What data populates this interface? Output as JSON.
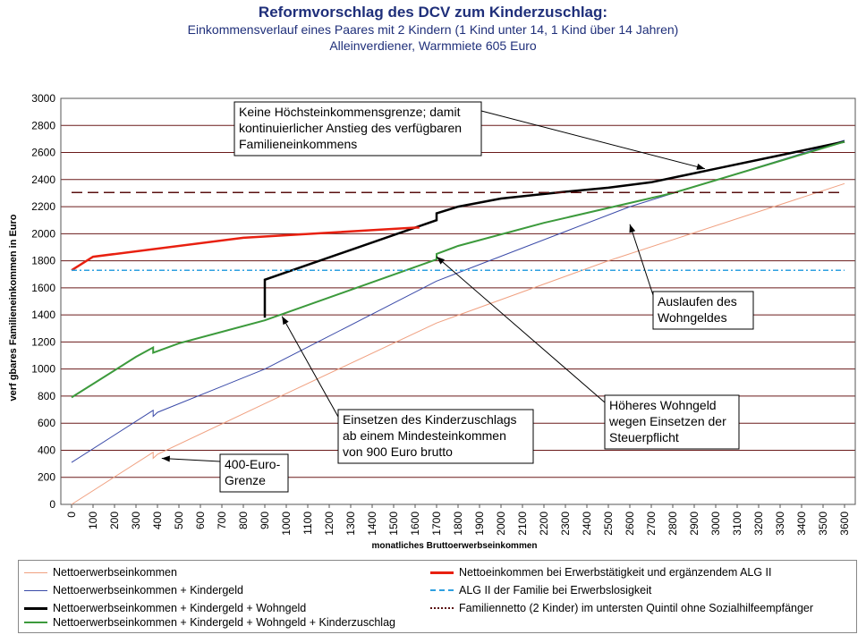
{
  "title": "Reformvorschlag des DCV zum Kinderzuschlag:",
  "subtitle1": "Einkommensverlauf eines Paares mit 2 Kindern (1 Kind unter 14, 1 Kind über 14 Jahren)",
  "subtitle2": "Alleinverdiener, Warmmiete 605 Euro",
  "chart_data": {
    "type": "line",
    "xlabel": "monatliches Bruttoerwerbseinkommen",
    "ylabel": "verf gbares Familieneinkommen in Euro",
    "xlim": [
      0,
      3600
    ],
    "ylim": [
      0,
      3000
    ],
    "x_ticks": [
      0,
      100,
      200,
      300,
      400,
      500,
      600,
      700,
      800,
      900,
      1000,
      1100,
      1200,
      1300,
      1400,
      1500,
      1600,
      1700,
      1800,
      1900,
      2000,
      2100,
      2200,
      2300,
      2400,
      2500,
      2600,
      2700,
      2800,
      2900,
      3000,
      3100,
      3200,
      3300,
      3400,
      3500,
      3600
    ],
    "y_ticks": [
      0,
      200,
      400,
      600,
      800,
      1000,
      1200,
      1400,
      1600,
      1800,
      2000,
      2200,
      2400,
      2600,
      2800,
      3000
    ],
    "grid": "horizontal",
    "legend_position": "bottom",
    "series": [
      {
        "name": "Nettoerwerbseinkommen",
        "color": "#f0a080",
        "width": 1,
        "points": [
          [
            0,
            0
          ],
          [
            380,
            385
          ],
          [
            380,
            340
          ],
          [
            400,
            370
          ],
          [
            900,
            745
          ],
          [
            1700,
            1340
          ],
          [
            2500,
            1800
          ],
          [
            3600,
            2370
          ]
        ]
      },
      {
        "name": "Nettoerwerbseinkommen + Kindergeld",
        "color": "#3a4aa8",
        "width": 1,
        "points": [
          [
            0,
            310
          ],
          [
            380,
            695
          ],
          [
            380,
            650
          ],
          [
            400,
            680
          ],
          [
            900,
            1000
          ],
          [
            1700,
            1650
          ],
          [
            2600,
            2200
          ],
          [
            3600,
            2690
          ]
        ]
      },
      {
        "name": "Nettoerwerbseinkommen + Kindergeld + Wohngeld",
        "color": "#000000",
        "width": 2.5,
        "points": [
          [
            900,
            1380
          ],
          [
            900,
            1660
          ],
          [
            1700,
            2100
          ],
          [
            1700,
            2150
          ],
          [
            1800,
            2200
          ],
          [
            2000,
            2260
          ],
          [
            2300,
            2310
          ],
          [
            2500,
            2340
          ],
          [
            2700,
            2380
          ],
          [
            3000,
            2480
          ],
          [
            3300,
            2580
          ],
          [
            3600,
            2680
          ]
        ]
      },
      {
        "name": "Nettoerwerbseinkommen + Kindergeld + Wohngeld + Kinderzuschlag",
        "color": "#3c9a3c",
        "width": 2,
        "points": [
          [
            0,
            790
          ],
          [
            300,
            1090
          ],
          [
            380,
            1160
          ],
          [
            380,
            1120
          ],
          [
            500,
            1190
          ],
          [
            900,
            1360
          ],
          [
            1700,
            1810
          ],
          [
            1700,
            1850
          ],
          [
            1800,
            1910
          ],
          [
            2200,
            2080
          ],
          [
            2800,
            2300
          ],
          [
            3600,
            2680
          ]
        ]
      },
      {
        "name": "Nettoeinkommen bei Erwerbstätigkeit und ergänzendem ALG II",
        "color": "#e82010",
        "width": 2.5,
        "points": [
          [
            0,
            1730
          ],
          [
            100,
            1830
          ],
          [
            800,
            1970
          ],
          [
            1600,
            2045
          ],
          [
            1620,
            2045
          ]
        ]
      },
      {
        "name": "ALG II der Familie bei Erwerbslosigkeit",
        "color": "#2fa0e0",
        "width": 1.5,
        "dash": "6,3,2,3",
        "points": [
          [
            0,
            1730
          ],
          [
            3600,
            1730
          ]
        ]
      },
      {
        "name": "Familiennetto (2 Kinder) im untersten Quintil ohne Sozialhilfeempfänger",
        "color": "#5a1010",
        "width": 1.5,
        "dash": "12,6",
        "points": [
          [
            0,
            2305
          ],
          [
            3600,
            2305
          ]
        ]
      }
    ],
    "annotations": [
      {
        "lines": [
          "Keine Höchsteinkommensgrenze; damit",
          "kontinuierlicher Anstieg des verfügbaren",
          "Familieneinkommens"
        ],
        "arrow_to": [
          2950,
          2480
        ]
      },
      {
        "lines": [
          "Auslaufen des",
          "Wohngeldes"
        ],
        "arrow_to": [
          2600,
          2070
        ]
      },
      {
        "lines": [
          "Höheres Wohngeld",
          "wegen Einsetzen der",
          "Steuerpflicht"
        ],
        "arrow_to": [
          1700,
          1830
        ]
      },
      {
        "lines": [
          "Einsetzen des Kinderzuschlags",
          "ab einem Mindesteinkommen",
          "von 900 Euro brutto"
        ],
        "arrow_to": [
          980,
          1390
        ]
      },
      {
        "lines": [
          "400-Euro-",
          "Grenze"
        ],
        "arrow_to": [
          420,
          340
        ]
      }
    ]
  }
}
